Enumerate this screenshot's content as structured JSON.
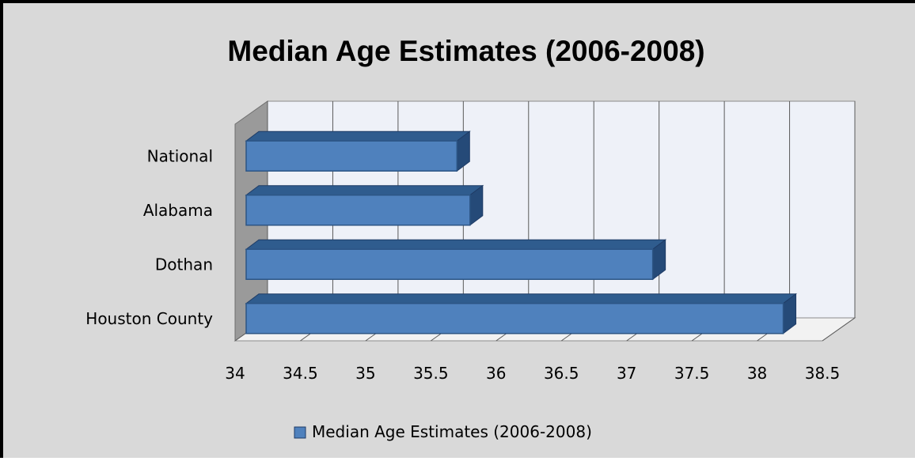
{
  "chart_data": {
    "type": "bar",
    "orientation": "horizontal",
    "style": "3d",
    "title": "Median Age Estimates (2006-2008)",
    "categories": [
      "National",
      "Alabama",
      "Dothan",
      "Houston County"
    ],
    "series": [
      {
        "name": "Median Age Estimates (2006-2008)",
        "values": [
          35.7,
          35.8,
          37.2,
          38.2
        ]
      }
    ],
    "xlim": [
      34,
      38.5
    ],
    "xticks": [
      "34",
      "34.5",
      "35",
      "35.5",
      "36",
      "36.5",
      "37",
      "37.5",
      "38",
      "38.5"
    ],
    "grid": true,
    "legend_position": "bottom",
    "colors": {
      "bar_face": "#4f81bd",
      "bar_top": "#2f5c8e",
      "bar_side": "#254a78",
      "plot_back": "#eef1f8",
      "chart_bg": "#d9d9d9"
    }
  }
}
